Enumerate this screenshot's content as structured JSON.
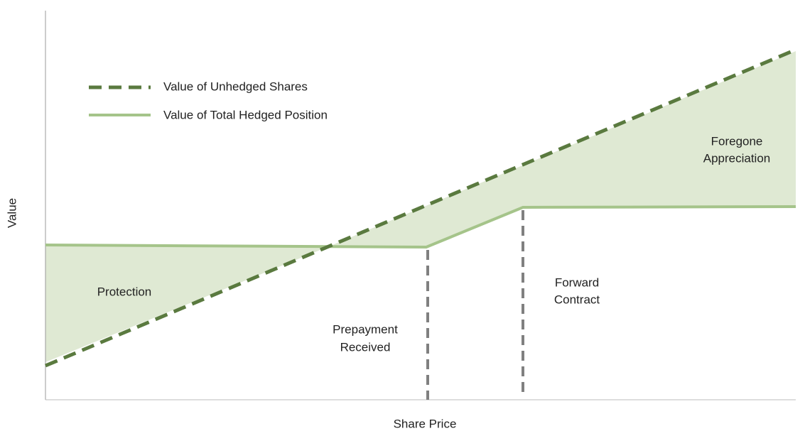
{
  "axes": {
    "x_label": "Share Price",
    "y_label": "Value"
  },
  "legend": {
    "items": [
      {
        "label": "Value of Unhedged Shares"
      },
      {
        "label": "Value of Total Hedged Position"
      }
    ]
  },
  "annotations": {
    "protection": "Protection",
    "prepayment": [
      "Prepayment",
      "Received"
    ],
    "forward": [
      "Forward",
      "Contract"
    ],
    "foregone": [
      "Foregone",
      "Appreciation"
    ]
  }
}
